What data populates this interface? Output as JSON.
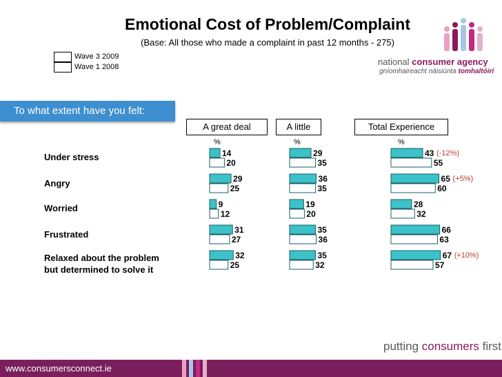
{
  "header": {
    "title": "Emotional Cost of Problem/Complaint",
    "subtitle": "(Base: All those who made a complaint in past 12 months - 275)"
  },
  "legend": {
    "wave3": "Wave 3 2009",
    "wave1": "Wave 1 2008"
  },
  "question": "To what extent have you felt:",
  "brand": {
    "line1_prefix": "national ",
    "line1_accent": "consumer agency",
    "line2_prefix": "gníomhaireacht náisiúnta ",
    "line2_accent": "tomhaltóirí",
    "tagline_prefix": "putting ",
    "tagline_accent": "consumers",
    "tagline_suffix": " first",
    "url": "www.consumersconnect.ie"
  },
  "chart_data": {
    "type": "bar",
    "orientation": "horizontal",
    "title": "Emotional Cost of Problem/Complaint",
    "unit": "%",
    "categories": [
      "Under stress",
      "Angry",
      "Worried",
      "Frustrated",
      "Relaxed about the problem but determined to solve it"
    ],
    "category_lines": [
      [
        "Under stress"
      ],
      [
        "Angry"
      ],
      [
        "Worried"
      ],
      [
        "Frustrated"
      ],
      [
        "Relaxed about the problem",
        "but determined to solve it"
      ]
    ],
    "panels": [
      {
        "name": "A great deal",
        "series": [
          {
            "name": "Wave 3 2009",
            "values": [
              14,
              29,
              9,
              31,
              32
            ]
          },
          {
            "name": "Wave 1 2008",
            "values": [
              20,
              25,
              12,
              27,
              25
            ]
          }
        ]
      },
      {
        "name": "A little",
        "series": [
          {
            "name": "Wave 3 2009",
            "values": [
              29,
              36,
              19,
              35,
              35
            ]
          },
          {
            "name": "Wave 1 2008",
            "values": [
              35,
              35,
              20,
              36,
              32
            ]
          }
        ]
      },
      {
        "name": "Total Experience",
        "series": [
          {
            "name": "Wave 3 2009",
            "values": [
              43,
              65,
              28,
              66,
              67
            ]
          },
          {
            "name": "Wave 1 2008",
            "values": [
              55,
              60,
              32,
              63,
              57
            ]
          }
        ],
        "changes": [
          "(-12%)",
          "(+5%)",
          "",
          "",
          "(+10%)"
        ]
      }
    ],
    "colors": {
      "wave3": "#3cc2c8",
      "wave1": "#ffffff",
      "change_text": "#c0392b"
    }
  }
}
